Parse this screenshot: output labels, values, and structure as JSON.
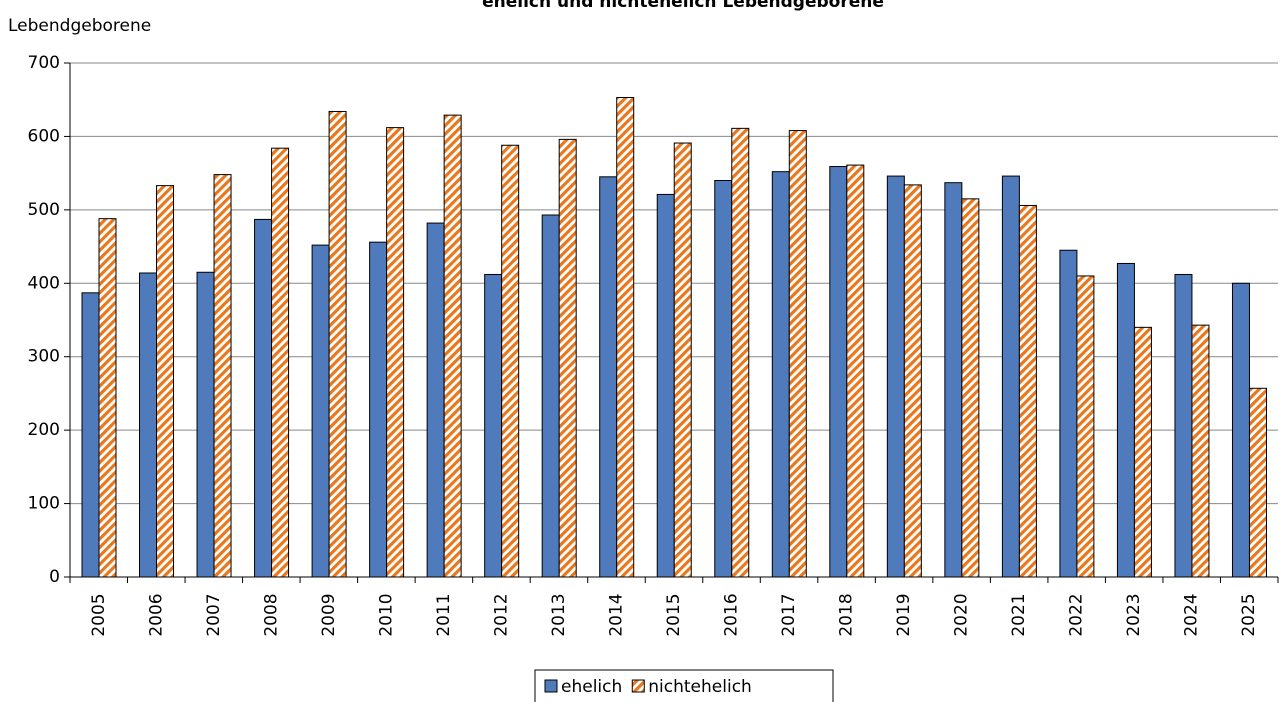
{
  "chart_data": {
    "type": "bar",
    "title": "ehelich und nichtehelich Lebendgeborene",
    "y_label": "Lebendgeborene",
    "categories": [
      "2005",
      "2006",
      "2007",
      "2008",
      "2009",
      "2010",
      "2011",
      "2012",
      "2013",
      "2014",
      "2015",
      "2016",
      "2017",
      "2018",
      "2019",
      "2020",
      "2021",
      "2022",
      "2023",
      "2024",
      "2025"
    ],
    "series": [
      {
        "name": "ehelich",
        "color": "#4f7bbd",
        "values": [
          387,
          414,
          415,
          487,
          452,
          456,
          482,
          412,
          493,
          545,
          521,
          540,
          552,
          559,
          546,
          537,
          546,
          445,
          427,
          412,
          400
        ]
      },
      {
        "name": "nichtehelich",
        "color": "#e8781e",
        "pattern": "hatched",
        "values": [
          488,
          533,
          548,
          584,
          634,
          612,
          629,
          588,
          596,
          653,
          591,
          611,
          608,
          561,
          534,
          515,
          506,
          410,
          340,
          343,
          257
        ]
      }
    ],
    "ylim": [
      0,
      700
    ],
    "yticks": [
      0,
      100,
      200,
      300,
      400,
      500,
      600,
      700
    ],
    "grid": true,
    "legend": "bottom"
  }
}
